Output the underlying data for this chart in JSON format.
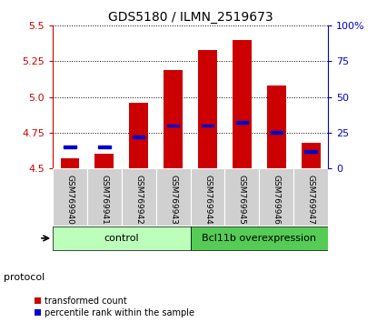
{
  "title": "GDS5180 / ILMN_2519673",
  "samples": [
    "GSM769940",
    "GSM769941",
    "GSM769942",
    "GSM769943",
    "GSM769944",
    "GSM769945",
    "GSM769946",
    "GSM769947"
  ],
  "transformed_counts": [
    4.57,
    4.6,
    4.96,
    5.19,
    5.33,
    5.4,
    5.08,
    4.68
  ],
  "percentile_ranks": [
    15,
    15,
    22,
    30,
    30,
    32,
    25,
    12
  ],
  "ylim_left": [
    4.5,
    5.5
  ],
  "ylim_right": [
    0,
    100
  ],
  "yticks_left": [
    4.5,
    4.75,
    5.0,
    5.25,
    5.5
  ],
  "yticks_right": [
    0,
    25,
    50,
    75,
    100
  ],
  "groups": [
    {
      "label": "control",
      "start": 0,
      "end": 4,
      "color": "#bbffbb"
    },
    {
      "label": "Bcl11b overexpression",
      "start": 4,
      "end": 8,
      "color": "#55cc55"
    }
  ],
  "bar_color": "#cc0000",
  "percentile_color": "#0000cc",
  "bar_bottom": 4.5,
  "bar_width": 0.55,
  "bg_color": "#ffffff",
  "label_color_left": "#cc0000",
  "label_color_right": "#0000cc",
  "sample_label_bg": "#d0d0d0",
  "protocol_label": "protocol",
  "legend_items": [
    "transformed count",
    "percentile rank within the sample"
  ]
}
